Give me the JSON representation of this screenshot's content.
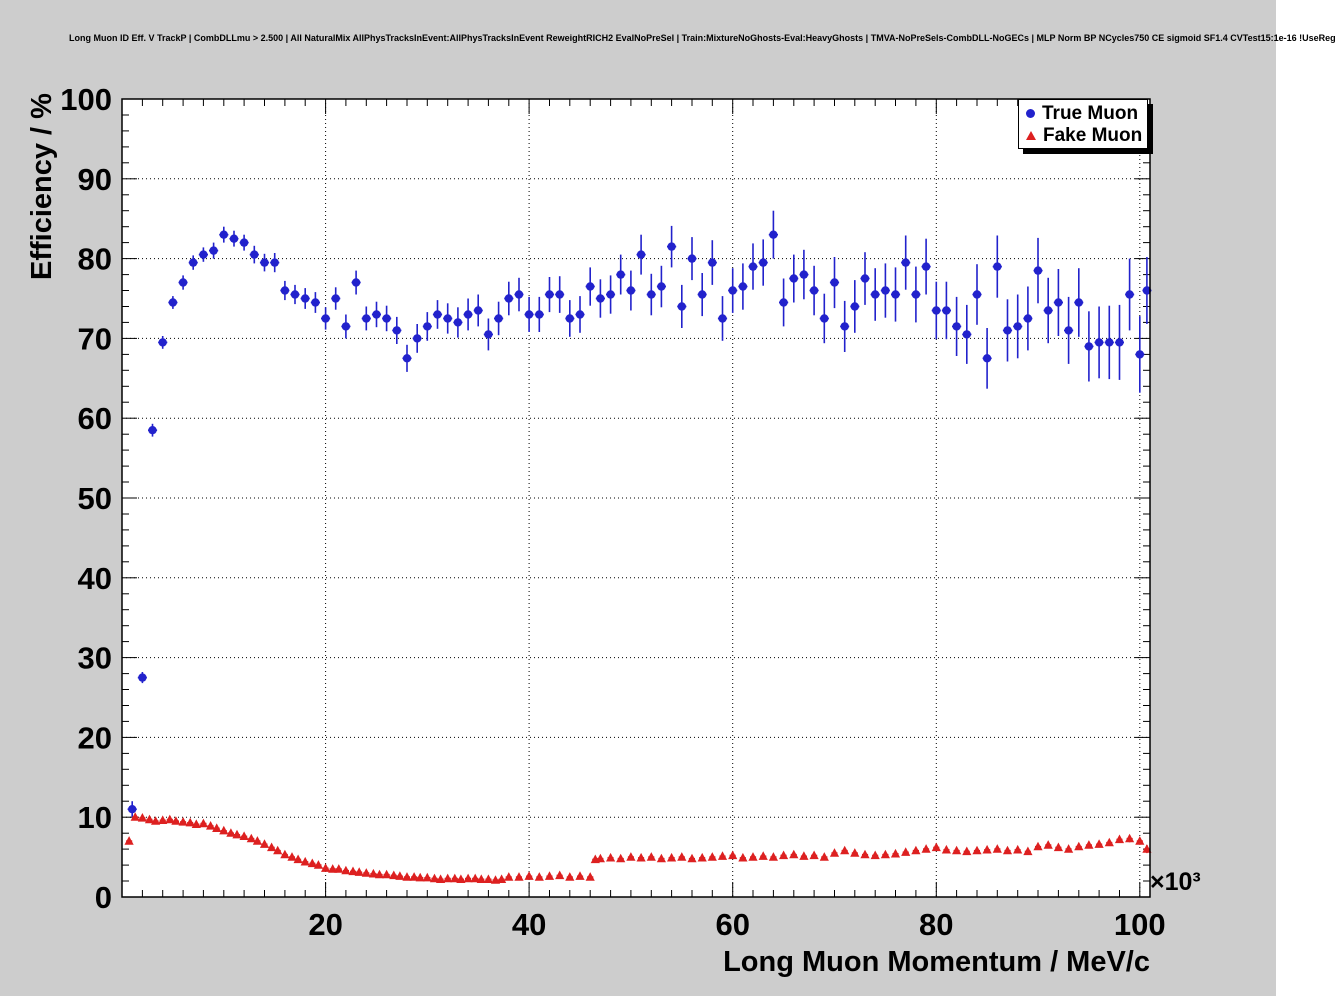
{
  "colors": {
    "canvas_bg": "#cdcdcd",
    "frame_bg": "#ffffff",
    "true_muon": "#2222cc",
    "fake_muon": "#dd2020",
    "grid": "#000000"
  },
  "chart_data": {
    "type": "scatter",
    "title": "Long Muon ID Eff. V TrackP | CombDLLmu > 2.500 | All NaturalMix AllPhysTracksInEvent:AllPhysTracksInEvent ReweightRICH2 EvalNoPreSel | Train:MixtureNoGhosts-Eval:HeavyGhosts | TMVA-NoPreSels-CombDLL-NoGECs | MLP Norm BP NCycles750 CE sigmoid SF1.4 CVTest15:1e-16 !UseReg",
    "xlabel": "Long Muon Momentum / MeV/c",
    "ylabel": "Efficiency / %",
    "x_multiplier_label": "×10³",
    "xlim": [
      0,
      101
    ],
    "ylim": [
      0,
      100
    ],
    "x_major_ticks": [
      20,
      40,
      60,
      80,
      100
    ],
    "y_major_ticks": [
      0,
      10,
      20,
      30,
      40,
      50,
      60,
      70,
      80,
      90,
      100
    ],
    "grid": true,
    "legend": {
      "position": "top-right",
      "entries": [
        {
          "label": "True Muon",
          "marker": "circle",
          "color": "#2222cc"
        },
        {
          "label": "Fake Muon",
          "marker": "triangle",
          "color": "#dd2020"
        }
      ]
    },
    "series": [
      {
        "name": "True Muon",
        "marker": "circle",
        "color": "#2222cc",
        "xerr": 0.45,
        "points": [
          [
            1,
            11,
            1
          ],
          [
            2,
            27.5,
            0.7
          ],
          [
            3,
            58.5,
            0.8
          ],
          [
            4,
            69.5,
            0.8
          ],
          [
            5,
            74.5,
            0.8
          ],
          [
            6,
            77,
            0.9
          ],
          [
            7,
            79.5,
            0.9
          ],
          [
            8,
            80.5,
            0.9
          ],
          [
            9,
            81,
            1
          ],
          [
            10,
            83,
            1
          ],
          [
            11,
            82.5,
            1
          ],
          [
            12,
            82,
            1
          ],
          [
            13,
            80.5,
            1.1
          ],
          [
            14,
            79.5,
            1.1
          ],
          [
            15,
            79.5,
            1.2
          ],
          [
            16,
            76,
            1.2
          ],
          [
            17,
            75.5,
            1.2
          ],
          [
            18,
            75,
            1.3
          ],
          [
            19,
            74.5,
            1.3
          ],
          [
            20,
            72.5,
            1.4
          ],
          [
            21,
            75,
            1.4
          ],
          [
            22,
            71.5,
            1.5
          ],
          [
            23,
            77,
            1.5
          ],
          [
            24,
            72.5,
            1.5
          ],
          [
            25,
            73,
            1.6
          ],
          [
            26,
            72.5,
            1.6
          ],
          [
            27,
            71,
            1.7
          ],
          [
            28,
            67.5,
            1.7
          ],
          [
            29,
            70,
            1.8
          ],
          [
            30,
            71.5,
            1.8
          ],
          [
            31,
            73,
            1.8
          ],
          [
            32,
            72.5,
            1.9
          ],
          [
            33,
            72,
            1.9
          ],
          [
            34,
            73,
            2
          ],
          [
            35,
            73.5,
            2
          ],
          [
            36,
            70.5,
            2
          ],
          [
            37,
            72.5,
            2.1
          ],
          [
            38,
            75,
            2.1
          ],
          [
            39,
            75.5,
            2.1
          ],
          [
            40,
            73,
            2.2
          ],
          [
            41,
            73,
            2.2
          ],
          [
            42,
            75.5,
            2.2
          ],
          [
            43,
            75.5,
            2.3
          ],
          [
            44,
            72.5,
            2.3
          ],
          [
            45,
            73,
            2.3
          ],
          [
            46,
            76.5,
            2.4
          ],
          [
            47,
            75,
            2.4
          ],
          [
            48,
            75.5,
            2.4
          ],
          [
            49,
            78,
            2.5
          ],
          [
            50,
            76,
            2.5
          ],
          [
            51,
            80.5,
            2.5
          ],
          [
            52,
            75.5,
            2.6
          ],
          [
            53,
            76.5,
            2.6
          ],
          [
            54,
            81.5,
            2.6
          ],
          [
            55,
            74,
            2.7
          ],
          [
            56,
            80,
            2.7
          ],
          [
            57,
            75.5,
            2.7
          ],
          [
            58,
            79.5,
            2.8
          ],
          [
            59,
            72.5,
            2.8
          ],
          [
            60,
            76,
            2.8
          ],
          [
            61,
            76.5,
            2.9
          ],
          [
            62,
            79,
            2.9
          ],
          [
            63,
            79.5,
            2.9
          ],
          [
            64,
            83,
            3
          ],
          [
            65,
            74.5,
            3
          ],
          [
            66,
            77.5,
            3
          ],
          [
            67,
            78,
            3.1
          ],
          [
            68,
            76,
            3.1
          ],
          [
            69,
            72.5,
            3.1
          ],
          [
            70,
            77,
            3.2
          ],
          [
            71,
            71.5,
            3.2
          ],
          [
            72,
            74,
            3.3
          ],
          [
            73,
            77.5,
            3.3
          ],
          [
            74,
            75.5,
            3.3
          ],
          [
            75,
            76,
            3.4
          ],
          [
            76,
            75.5,
            3.4
          ],
          [
            77,
            79.5,
            3.4
          ],
          [
            78,
            75.5,
            3.5
          ],
          [
            79,
            79,
            3.5
          ],
          [
            80,
            73.5,
            3.6
          ],
          [
            81,
            73.5,
            3.6
          ],
          [
            82,
            71.5,
            3.7
          ],
          [
            83,
            70.5,
            3.7
          ],
          [
            84,
            75.5,
            3.8
          ],
          [
            85,
            67.5,
            3.8
          ],
          [
            86,
            79,
            3.9
          ],
          [
            87,
            71,
            3.9
          ],
          [
            88,
            71.5,
            4
          ],
          [
            89,
            72.5,
            4
          ],
          [
            90,
            78.5,
            4.1
          ],
          [
            91,
            73.5,
            4.1
          ],
          [
            92,
            74.5,
            4.2
          ],
          [
            93,
            71,
            4.2
          ],
          [
            94,
            74.5,
            4.3
          ],
          [
            95,
            69,
            4.4
          ],
          [
            96,
            69.5,
            4.5
          ],
          [
            97,
            69.5,
            4.6
          ],
          [
            98,
            69.5,
            4.7
          ],
          [
            99,
            75.5,
            4.5
          ],
          [
            100,
            68,
            4.8
          ],
          [
            100.7,
            76,
            4.2
          ]
        ]
      },
      {
        "name": "Fake Muon",
        "marker": "triangle",
        "color": "#dd2020",
        "xerr": 0.3,
        "points": [
          [
            0.7,
            7,
            0.3
          ],
          [
            1.3,
            10,
            0.3
          ],
          [
            2,
            9.9,
            0.25
          ],
          [
            2.7,
            9.7,
            0.25
          ],
          [
            3.3,
            9.5,
            0.2
          ],
          [
            4,
            9.6,
            0.2
          ],
          [
            4.7,
            9.7,
            0.2
          ],
          [
            5.3,
            9.5,
            0.2
          ],
          [
            6,
            9.4,
            0.2
          ],
          [
            6.7,
            9.3,
            0.2
          ],
          [
            7.3,
            9.1,
            0.2
          ],
          [
            8,
            9.2,
            0.2
          ],
          [
            8.7,
            8.9,
            0.2
          ],
          [
            9.3,
            8.6,
            0.2
          ],
          [
            10,
            8.3,
            0.2
          ],
          [
            10.7,
            8,
            0.2
          ],
          [
            11.3,
            7.8,
            0.2
          ],
          [
            12,
            7.6,
            0.2
          ],
          [
            12.7,
            7.3,
            0.2
          ],
          [
            13.3,
            7,
            0.2
          ],
          [
            14,
            6.6,
            0.2
          ],
          [
            14.7,
            6.2,
            0.2
          ],
          [
            15.3,
            5.8,
            0.2
          ],
          [
            16,
            5.3,
            0.2
          ],
          [
            16.7,
            5,
            0.2
          ],
          [
            17.3,
            4.7,
            0.15
          ],
          [
            18,
            4.4,
            0.15
          ],
          [
            18.7,
            4.2,
            0.15
          ],
          [
            19.3,
            4,
            0.15
          ],
          [
            20,
            3.6,
            0.15
          ],
          [
            20.7,
            3.5,
            0.15
          ],
          [
            21.3,
            3.5,
            0.15
          ],
          [
            22,
            3.3,
            0.15
          ],
          [
            22.7,
            3.2,
            0.15
          ],
          [
            23.3,
            3.1,
            0.15
          ],
          [
            24,
            3,
            0.15
          ],
          [
            24.7,
            2.9,
            0.15
          ],
          [
            25.3,
            2.8,
            0.15
          ],
          [
            26,
            2.8,
            0.15
          ],
          [
            26.7,
            2.7,
            0.15
          ],
          [
            27.3,
            2.6,
            0.15
          ],
          [
            28,
            2.5,
            0.15
          ],
          [
            28.7,
            2.5,
            0.15
          ],
          [
            29.3,
            2.4,
            0.15
          ],
          [
            30,
            2.4,
            0.15
          ],
          [
            30.7,
            2.3,
            0.15
          ],
          [
            31.3,
            2.2,
            0.15
          ],
          [
            32,
            2.3,
            0.15
          ],
          [
            32.7,
            2.3,
            0.15
          ],
          [
            33.3,
            2.2,
            0.15
          ],
          [
            34,
            2.3,
            0.15
          ],
          [
            34.7,
            2.3,
            0.15
          ],
          [
            35.3,
            2.2,
            0.15
          ],
          [
            36,
            2.2,
            0.15
          ],
          [
            36.7,
            2.1,
            0.15
          ],
          [
            37.3,
            2.2,
            0.15
          ],
          [
            38,
            2.5,
            0.15
          ],
          [
            39,
            2.5,
            0.15
          ],
          [
            40,
            2.6,
            0.15
          ],
          [
            41,
            2.5,
            0.15
          ],
          [
            42,
            2.6,
            0.15
          ],
          [
            43,
            2.7,
            0.15
          ],
          [
            44,
            2.5,
            0.15
          ],
          [
            45,
            2.6,
            0.15
          ],
          [
            46,
            2.5,
            0.15
          ],
          [
            46.5,
            4.7,
            0.2
          ],
          [
            47,
            4.8,
            0.2
          ],
          [
            48,
            4.9,
            0.2
          ],
          [
            49,
            4.8,
            0.2
          ],
          [
            50,
            5,
            0.2
          ],
          [
            51,
            4.9,
            0.2
          ],
          [
            52,
            5,
            0.2
          ],
          [
            53,
            4.8,
            0.2
          ],
          [
            54,
            4.9,
            0.2
          ],
          [
            55,
            5,
            0.2
          ],
          [
            56,
            4.8,
            0.2
          ],
          [
            57,
            4.9,
            0.2
          ],
          [
            58,
            5,
            0.2
          ],
          [
            59,
            5.1,
            0.2
          ],
          [
            60,
            5.2,
            0.2
          ],
          [
            61,
            4.9,
            0.2
          ],
          [
            62,
            5,
            0.2
          ],
          [
            63,
            5.1,
            0.25
          ],
          [
            64,
            5,
            0.25
          ],
          [
            65,
            5.2,
            0.25
          ],
          [
            66,
            5.3,
            0.25
          ],
          [
            67,
            5.1,
            0.25
          ],
          [
            68,
            5.2,
            0.25
          ],
          [
            69,
            5,
            0.25
          ],
          [
            70,
            5.5,
            0.25
          ],
          [
            71,
            5.8,
            0.25
          ],
          [
            72,
            5.5,
            0.25
          ],
          [
            73,
            5.3,
            0.25
          ],
          [
            74,
            5.2,
            0.25
          ],
          [
            75,
            5.3,
            0.3
          ],
          [
            76,
            5.4,
            0.3
          ],
          [
            77,
            5.6,
            0.3
          ],
          [
            78,
            5.8,
            0.3
          ],
          [
            79,
            6,
            0.3
          ],
          [
            80,
            6.2,
            0.3
          ],
          [
            81,
            5.9,
            0.3
          ],
          [
            82,
            5.8,
            0.3
          ],
          [
            83,
            5.7,
            0.3
          ],
          [
            84,
            5.8,
            0.3
          ],
          [
            85,
            5.9,
            0.3
          ],
          [
            86,
            6,
            0.35
          ],
          [
            87,
            5.8,
            0.35
          ],
          [
            88,
            5.9,
            0.35
          ],
          [
            89,
            5.7,
            0.35
          ],
          [
            90,
            6.3,
            0.35
          ],
          [
            91,
            6.5,
            0.35
          ],
          [
            92,
            6.2,
            0.35
          ],
          [
            93,
            6,
            0.4
          ],
          [
            94,
            6.3,
            0.4
          ],
          [
            95,
            6.5,
            0.4
          ],
          [
            96,
            6.6,
            0.4
          ],
          [
            97,
            6.8,
            0.4
          ],
          [
            98,
            7.2,
            0.4
          ],
          [
            99,
            7.3,
            0.45
          ],
          [
            100,
            7,
            0.45
          ],
          [
            100.7,
            6,
            0.5
          ]
        ]
      }
    ]
  }
}
